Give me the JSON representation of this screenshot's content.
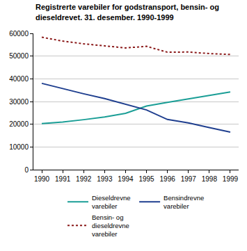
{
  "chart_data": {
    "type": "line",
    "title": "Registrerte varebiler for godstransport, bensin- og dieseldrevet. 31. desember. 1990-1999",
    "x": [
      1990,
      1991,
      1992,
      1993,
      1994,
      1995,
      1996,
      1997,
      1998,
      1999
    ],
    "series": [
      {
        "name": "Dieseldrevne varebiler",
        "color": "#1a9e96",
        "line_style": "solid",
        "values": [
          20300,
          21000,
          22000,
          23200,
          24800,
          28000,
          29600,
          31200,
          32600,
          34200
        ]
      },
      {
        "name": "Bensindrevne varebiler",
        "color": "#1f3f8f",
        "line_style": "solid",
        "values": [
          38000,
          35600,
          33400,
          31300,
          28800,
          26300,
          22100,
          20600,
          18500,
          16500
        ]
      },
      {
        "name": "Bensin- og dieseldrevne varebiler",
        "color": "#8b1a1a",
        "line_style": "dot",
        "values": [
          58300,
          56600,
          55400,
          54500,
          53600,
          54300,
          51700,
          51800,
          51100,
          50700
        ]
      }
    ],
    "xlim": [
      1989.6,
      1999.4
    ],
    "xticks": [
      1990,
      1991,
      1992,
      1993,
      1994,
      1995,
      1996,
      1997,
      1998,
      1999
    ],
    "ylim": [
      0,
      60000
    ],
    "yticks": [
      0,
      10000,
      20000,
      30000,
      40000,
      50000,
      60000
    ],
    "grid": true,
    "legend": "bottom"
  }
}
